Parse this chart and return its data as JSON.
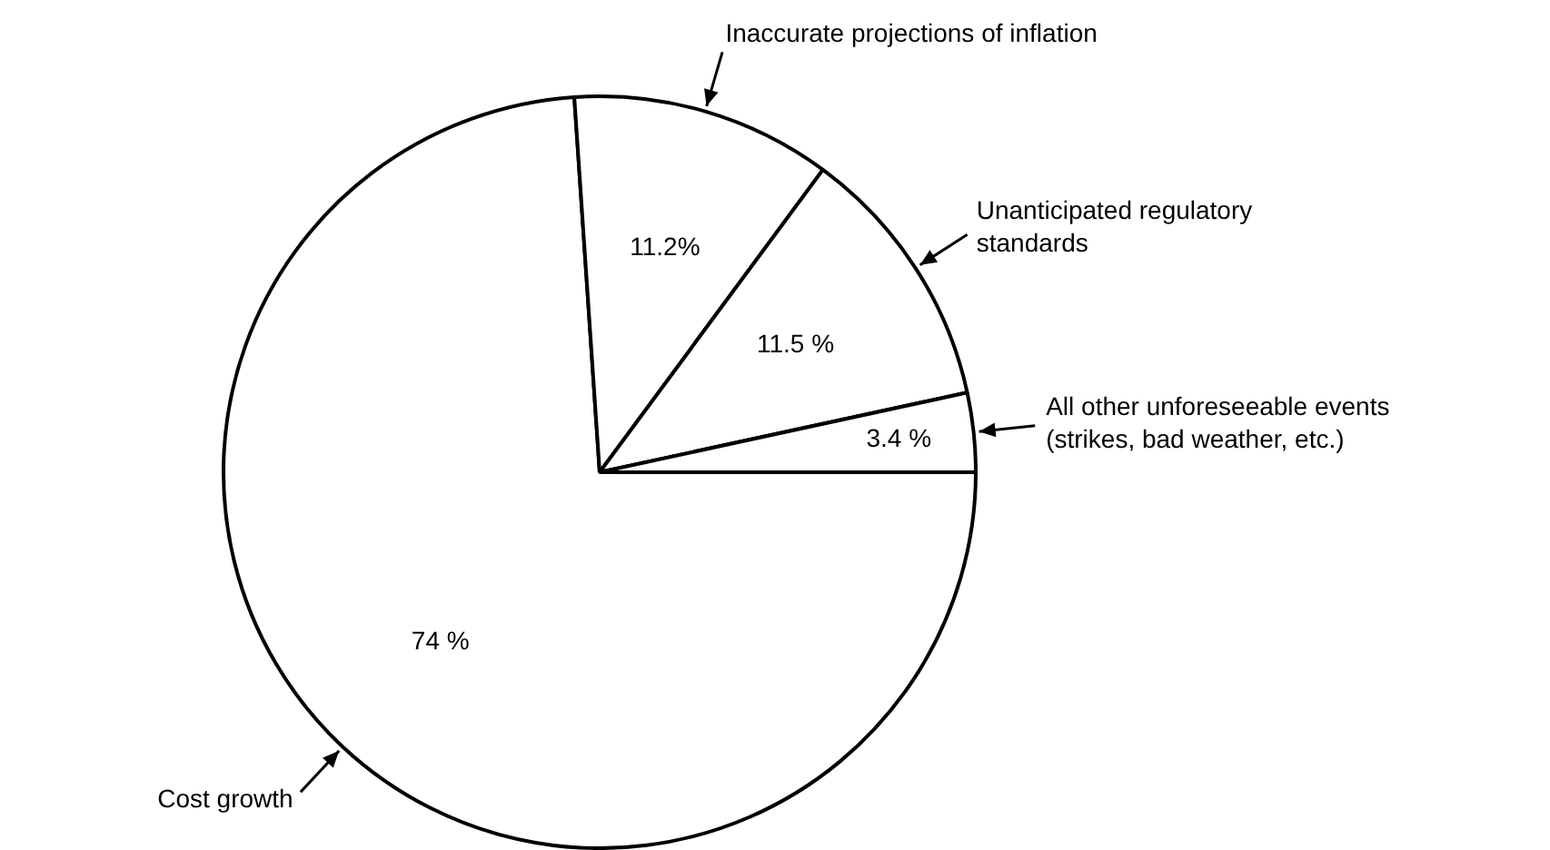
{
  "chart_data": {
    "type": "pie",
    "categories": [
      "Cost growth",
      "Inaccurate projections of inflation",
      "Unanticipated regulatory standards",
      "All other unforeseeable events (strikes, bad weather, etc.)"
    ],
    "values": [
      74,
      11.2,
      11.5,
      3.4
    ],
    "colors": [
      "#ffffff",
      "#ffffff",
      "#ffffff",
      "#ffffff"
    ],
    "value_labels": [
      "74 %",
      "11.2%",
      "11.5 %",
      "3.4 %"
    ]
  }
}
